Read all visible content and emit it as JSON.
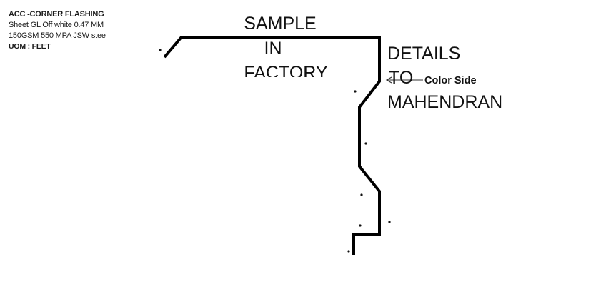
{
  "info": {
    "title": "ACC -CORNER FLASHING",
    "line1": "Sheet GL Off white 0.47 MM",
    "line2": "150GSM 550 MPA JSW stee",
    "uom": "UOM : FEET"
  },
  "annotations": {
    "sample_1": "SAMPLE",
    "sample_2": "IN",
    "sample_3": "FACTORY",
    "details_1": "DETAILS",
    "details_2": "TO",
    "details_3": "MAHENDRAN",
    "color_side": "Color Side"
  },
  "colors": {
    "profile": "#000000",
    "text": "#111111"
  }
}
